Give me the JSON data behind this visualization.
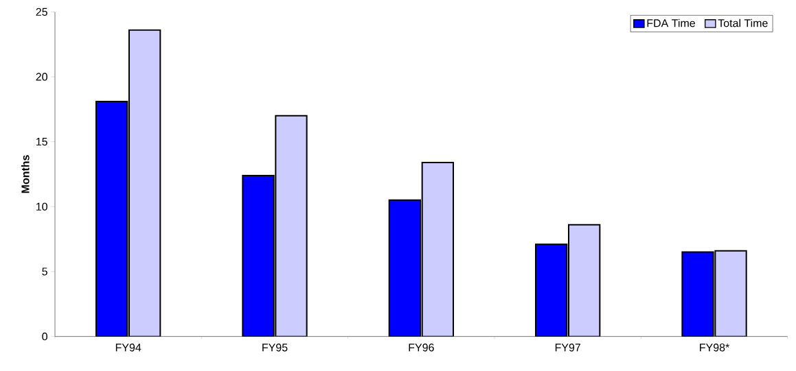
{
  "chart_data": {
    "type": "bar",
    "ylabel": "Months",
    "categories": [
      "FY94",
      "FY95",
      "FY96",
      "FY97",
      "FY98*"
    ],
    "series": [
      {
        "name": "FDA Time",
        "color": "#0000ff",
        "values": [
          18.1,
          12.4,
          10.5,
          7.1,
          6.5
        ]
      },
      {
        "name": "Total Time",
        "color": "#ccccff",
        "values": [
          23.6,
          17.0,
          13.4,
          8.6,
          6.6
        ]
      }
    ],
    "ylim": [
      0,
      25
    ],
    "yticks": [
      0,
      5,
      10,
      15,
      20,
      25
    ],
    "grid": false,
    "legend": "top right"
  }
}
